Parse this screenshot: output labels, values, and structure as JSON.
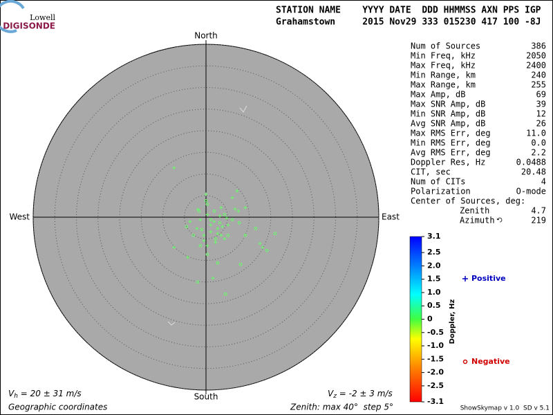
{
  "chart_data": {
    "type": "skymap",
    "logo": {
      "top": "Lowell",
      "bottom": "DIGISONDE"
    },
    "header": {
      "columns": "STATION NAME    YYYY DATE  DDD HHMMSS AXN PPS IGP",
      "values": "Grahamstown     2015 Nov29 333 015230 417 100 -8J"
    },
    "compass": {
      "north": "North",
      "south": "South",
      "east": "East",
      "west": "West"
    },
    "rlim": [
      0,
      40
    ],
    "rticks": [
      5,
      10,
      15,
      20,
      25,
      30,
      35,
      40
    ],
    "series": [
      {
        "name": "Positive",
        "marker": "plus",
        "color": "#66ff66",
        "legend_color": "#0000c0",
        "x": [
          -7.4,
          0,
          7.2,
          6.1,
          3.5,
          -1.9,
          0.3,
          1.9,
          2.7,
          1.1,
          -0.5,
          -2.1,
          -3.7,
          3.5,
          5.1,
          7.5,
          9.1,
          -7.4,
          -4.2,
          1.6,
          4.3,
          2.2,
          0.3,
          3.2,
          4.8,
          -1.3,
          13.1,
          12.5,
          6.7,
          1.1,
          2.7,
          3.8,
          -0.5
        ],
        "y": [
          11.4,
          5.3,
          6.1,
          4.5,
          2.2,
          1.8,
          0.6,
          -1.0,
          -2.6,
          -3.4,
          -4.2,
          -2.6,
          -1.0,
          -4.2,
          -1.8,
          1.4,
          2.2,
          -7.0,
          -9.3,
          -14.1,
          -5.0,
          -5.8,
          -6.6,
          0.3,
          -0.2,
          -0.6,
          -7.0,
          -6.1,
          1.9,
          -1.8,
          -3.8,
          -2.2,
          -5.4
        ]
      },
      {
        "name": "Negative",
        "marker": "circle",
        "color": "#66ff66",
        "legend_color": "#d00000",
        "x": [
          0,
          -1.6,
          1.9,
          4.3,
          6.1,
          7.7,
          11.5,
          16,
          14.1,
          8,
          4.5,
          -1.9,
          2.7,
          0.3,
          -1.3,
          -2.9,
          -4.5,
          2.2,
          5.1,
          9.1,
          3.2,
          1.1,
          -1.0,
          0.3
        ],
        "y": [
          3.8,
          1.4,
          1.4,
          0.6,
          -0.6,
          -1.3,
          -2.6,
          -3.8,
          -7.7,
          -10.9,
          -17.8,
          -15,
          -10.6,
          -8.6,
          -6.6,
          -4.2,
          -2.2,
          -5.0,
          -4.2,
          -4.2,
          -1.3,
          -0.6,
          -2.9,
          3.0
        ]
      }
    ],
    "stats": [
      {
        "label": "Num of Sources",
        "value": "386"
      },
      {
        "label": "Min Freq, kHz",
        "value": "2050"
      },
      {
        "label": "Max Freq, kHz",
        "value": "2400"
      },
      {
        "label": "Min Range, km",
        "value": "240"
      },
      {
        "label": "Max Range, km",
        "value": "255"
      },
      {
        "label": "Max Amp, dB",
        "value": "69"
      },
      {
        "label": "Max SNR Amp, dB",
        "value": "39"
      },
      {
        "label": "Min SNR Amp, dB",
        "value": "12"
      },
      {
        "label": "Avg SNR Amp, dB",
        "value": "26"
      },
      {
        "label": "Max RMS Err, deg",
        "value": "11.0"
      },
      {
        "label": "Min RMS Err, deg",
        "value": "0.0"
      },
      {
        "label": "Avg RMS Err, deg",
        "value": "2.2"
      },
      {
        "label": "Doppler Res, Hz",
        "value": "0.0488"
      },
      {
        "label": "CIT, sec",
        "value": "20.48"
      },
      {
        "label": "Num of CITs",
        "value": "4"
      },
      {
        "label": "Polarization",
        "value": "O-mode"
      }
    ],
    "center": {
      "label": "Center of Sources, deg:",
      "rows": [
        {
          "label": "Zenith",
          "value": "4.7"
        },
        {
          "label": "Azimuth",
          "value": "219"
        }
      ]
    },
    "colorbar": {
      "label": "Doppler, Hz",
      "lim": [
        -3.1,
        3.1
      ],
      "ticks": [
        3.1,
        2.5,
        {
          "value": 2,
          "label": "2.0"
        },
        1.5,
        {
          "value": 1,
          "label": "1.0"
        },
        0.5,
        0,
        -0.5,
        {
          "value": -1,
          "label": "-1.0"
        },
        -1.5,
        {
          "value": -2,
          "label": "-2.0"
        },
        -2.5,
        -3.1
      ]
    },
    "vh": {
      "symbol": "V",
      "subscript": "h",
      "text": " = 20 ± 31 m/s"
    },
    "vz": {
      "symbol": "V",
      "subscript": "z",
      "text": " = -2 ± 3 m/s"
    },
    "coordinates": "Geographic coordinates",
    "zenith_note": "Zenith: max 40°  step 5°",
    "version": "ShowSkymap v 1.0  SD v 5.1"
  }
}
